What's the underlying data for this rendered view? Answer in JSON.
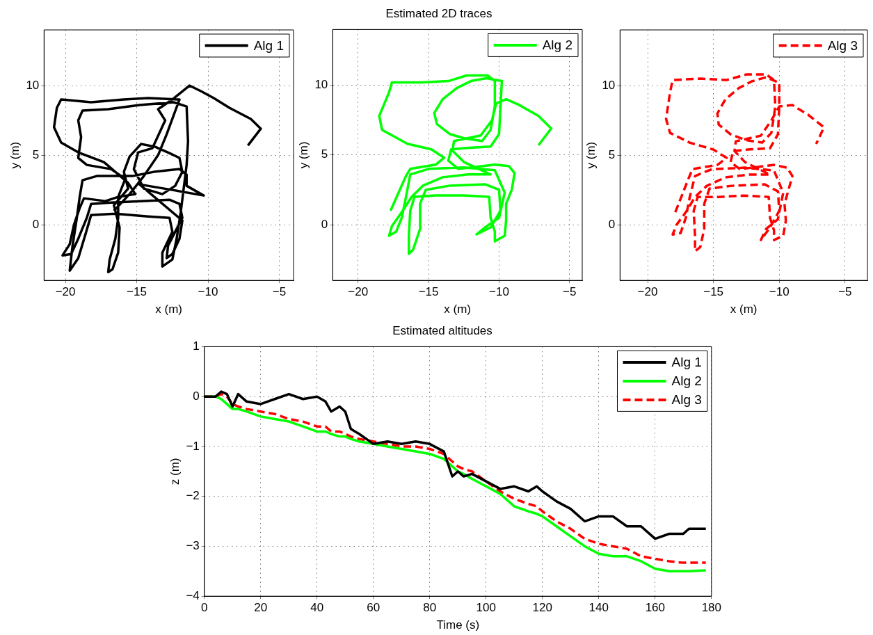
{
  "chart_data": [
    {
      "type": "line",
      "xlabel": "x (m)",
      "ylabel": "y (m)",
      "xlim": [
        -21.5,
        -4
      ],
      "ylim": [
        -4,
        14
      ],
      "xticks": [
        -20,
        -15,
        -10,
        -5
      ],
      "yticks": [
        0,
        5,
        10
      ],
      "grid": true,
      "legend": "top right",
      "marker": "none",
      "series": [
        {
          "name": "Alg 1",
          "color": "#000000",
          "line_style": "solid",
          "x": [
            -16.6,
            -15.5,
            -14.5,
            -13.5,
            -12.9,
            -12.0,
            -14.2,
            -15.9,
            -18.2,
            -20.3,
            -20.6,
            -20.8,
            -20.3,
            -19.1,
            -17.3,
            -16.5,
            -15.6,
            -15.1,
            -16.3,
            -17.2,
            -18.7,
            -19.0,
            -19.4,
            -19.7,
            -20.2,
            -19.6,
            -19.1,
            -18.5,
            -18.2,
            -16.8,
            -14.7,
            -12.7,
            -12.0,
            -11.8,
            -12.3,
            -12.8,
            -12.9,
            -12.5,
            -12.0,
            -11.8,
            -14.8,
            -12.5,
            -10.3,
            -11.5,
            -11.5,
            -12.0,
            -13.8,
            -15.3,
            -17.8,
            -18.8,
            -19.0,
            -19.2,
            -19.5,
            -19.7,
            -19.1,
            -18.6,
            -18.2,
            -16.5,
            -14.2,
            -12.7,
            -12.5,
            -13.2,
            -13.2,
            -12.5,
            -12.2,
            -11.9,
            -11.5,
            -11.4,
            -11.5,
            -12.4,
            -14.8,
            -17.0,
            -18.8,
            -19.1,
            -18.9,
            -19.1,
            -18.5,
            -16.8,
            -15.8,
            -16.3,
            -16.3,
            -16.5,
            -16.9,
            -17.0,
            -16.7,
            -16.3,
            -16.2,
            -16.6,
            -15.6,
            -15.9,
            -15.5,
            -14.7,
            -13.7,
            -12.6,
            -12.0,
            -11.8,
            -12.3,
            -13.2,
            -14.5,
            -15.2,
            -14.9,
            -13.9,
            -13.0,
            -13.5,
            -12.5,
            -11.3,
            -10.5,
            -9.6,
            -8.5,
            -7.0,
            -6.3,
            -7.2
          ],
          "values": [
            1.0,
            2.2,
            3.5,
            5.0,
            6.5,
            9.0,
            9.1,
            9.0,
            8.8,
            9.0,
            8.4,
            7.0,
            5.9,
            5.2,
            4.5,
            3.8,
            3.0,
            2.2,
            2.0,
            1.7,
            1.9,
            1.2,
            0.0,
            -1.4,
            -2.2,
            -2.1,
            -1.0,
            0.5,
            1.5,
            1.6,
            1.7,
            1.8,
            1.5,
            0.5,
            -0.5,
            -1.5,
            -2.4,
            -2.1,
            -1.0,
            0.3,
            2.9,
            2.5,
            2.1,
            2.8,
            3.6,
            4.0,
            3.8,
            3.5,
            3.5,
            3.2,
            2.0,
            0.5,
            -1.5,
            -3.3,
            -2.4,
            -0.7,
            0.7,
            0.8,
            0.6,
            0.5,
            -0.5,
            -2.0,
            -3.0,
            -2.5,
            -1.0,
            1.0,
            4.3,
            6.0,
            8.5,
            8.8,
            8.6,
            8.3,
            8.2,
            7.5,
            6.3,
            4.8,
            4.3,
            4.0,
            3.3,
            2.0,
            0.5,
            -1.0,
            -2.5,
            -3.4,
            -3.2,
            -2.0,
            -0.2,
            1.4,
            2.6,
            3.8,
            4.9,
            5.8,
            5.6,
            5.1,
            4.8,
            3.8,
            2.8,
            2.2,
            2.6,
            4.0,
            5.2,
            5.5,
            7.5,
            8.3,
            9.0,
            10.0,
            9.6,
            9.1,
            8.4,
            7.6,
            6.9,
            5.7
          ]
        }
      ]
    },
    {
      "type": "line",
      "title": "Estimated 2D traces",
      "xlabel": "x (m)",
      "ylabel": "y (m)",
      "xlim": [
        -21.8,
        -4.1
      ],
      "ylim": [
        -4,
        14
      ],
      "xticks": [
        -20,
        -15,
        -10,
        -5
      ],
      "yticks": [
        0,
        5,
        10
      ],
      "grid": true,
      "legend": "top right",
      "marker": "none",
      "series": [
        {
          "name": "Alg 2",
          "color": "#00ff00",
          "line_style": "solid",
          "x": [
            -17.7,
            -16.6,
            -16.3,
            -14.5,
            -13.9,
            -14.8,
            -16.5,
            -18.3,
            -18.5,
            -17.8,
            -17.6,
            -15.5,
            -13.6,
            -12.3,
            -10.8,
            -10.3,
            -10.3,
            -10.6,
            -11.2,
            -12.5,
            -13.5,
            -14.4,
            -14.6,
            -14.0,
            -13.0,
            -12.0,
            -10.9,
            -9.8,
            -9.9,
            -10.0,
            -10.6,
            -12.3,
            -13.4,
            -13.6,
            -12.9,
            -12.0,
            -10.3,
            -9.3,
            -8.9,
            -9.1,
            -9.5,
            -9.5,
            -9.6,
            -10.3,
            -10.3,
            -10.6,
            -10.7,
            -12.5,
            -14.5,
            -16.0,
            -16.3,
            -16.4,
            -16.4,
            -16.1,
            -15.6,
            -15.6,
            -15.2,
            -13.5,
            -11.0,
            -10.0,
            -9.9,
            -10.6,
            -11.6,
            -11.0,
            -10.0,
            -9.6,
            -10.3,
            -12.5,
            -15.0,
            -16.3,
            -16.6,
            -16.9,
            -17.3,
            -17.8,
            -17.6,
            -16.9,
            -16.2,
            -15.4,
            -14.0,
            -12.2,
            -10.6,
            -12.5,
            -13.3,
            -13.2,
            -11.3,
            -10.5,
            -10.2,
            -9.5,
            -8.6,
            -7.2,
            -6.3,
            -7.2
          ],
          "values": [
            1.0,
            3.5,
            4.0,
            4.3,
            4.8,
            5.4,
            5.8,
            6.8,
            7.8,
            9.5,
            10.2,
            10.2,
            10.3,
            10.7,
            10.7,
            10.3,
            8.5,
            6.8,
            6.0,
            6.2,
            6.5,
            7.2,
            8.0,
            9.0,
            9.8,
            10.3,
            10.5,
            10.3,
            8.5,
            6.5,
            5.6,
            5.5,
            5.4,
            4.6,
            4.0,
            4.1,
            4.3,
            4.2,
            3.7,
            2.5,
            1.5,
            0.3,
            -0.8,
            -1.2,
            -0.5,
            0.5,
            2.0,
            2.1,
            2.1,
            2.0,
            1.0,
            -0.8,
            -2.1,
            -1.8,
            -0.3,
            1.5,
            2.5,
            2.8,
            2.9,
            2.5,
            1.0,
            -0.2,
            -0.7,
            -0.2,
            0.5,
            2.3,
            3.9,
            4.1,
            4.0,
            3.6,
            2.0,
            0.5,
            -0.5,
            -0.8,
            -0.1,
            0.9,
            2.0,
            2.8,
            3.4,
            3.6,
            3.6,
            4.5,
            5.3,
            6.0,
            6.4,
            7.5,
            8.7,
            9.0,
            8.6,
            7.8,
            6.9,
            5.7
          ]
        }
      ]
    },
    {
      "type": "line",
      "xlabel": "x (m)",
      "ylabel": "y (m)",
      "xlim": [
        -22.1,
        -3.3
      ],
      "ylim": [
        -4,
        14
      ],
      "xticks": [
        -20,
        -15,
        -10,
        -5
      ],
      "yticks": [
        0,
        5,
        10
      ],
      "grid": true,
      "legend": "top right",
      "marker": "none",
      "series": [
        {
          "name": "Alg 3",
          "color": "#ff0000",
          "line_style": "dashed",
          "x": [
            -17.9,
            -16.9,
            -16.6,
            -14.7,
            -14.0,
            -15.0,
            -16.8,
            -18.3,
            -18.6,
            -18.3,
            -18.1,
            -16.0,
            -14.0,
            -12.5,
            -11.0,
            -10.4,
            -10.3,
            -10.6,
            -11.3,
            -12.6,
            -13.7,
            -14.6,
            -14.7,
            -14.1,
            -13.1,
            -12.1,
            -11.0,
            -10.0,
            -10.0,
            -10.1,
            -10.7,
            -12.4,
            -13.5,
            -13.7,
            -13.0,
            -12.1,
            -10.4,
            -9.4,
            -9.0,
            -9.3,
            -9.6,
            -9.5,
            -9.7,
            -10.4,
            -10.4,
            -10.7,
            -10.8,
            -12.7,
            -14.6,
            -16.2,
            -16.5,
            -16.4,
            -16.4,
            -16.0,
            -15.7,
            -15.7,
            -15.3,
            -13.6,
            -11.1,
            -10.1,
            -10.0,
            -10.7,
            -11.4,
            -11.0,
            -10.1,
            -9.7,
            -10.4,
            -12.6,
            -15.1,
            -16.4,
            -16.8,
            -17.1,
            -17.5,
            -18.1,
            -17.8,
            -17.1,
            -16.4,
            -15.5,
            -14.1,
            -12.3,
            -10.7,
            -12.6,
            -13.4,
            -13.3,
            -11.4,
            -10.6,
            -10.0,
            -9.0,
            -7.8,
            -6.6,
            -7.2
          ],
          "values": [
            0.9,
            3.3,
            4.0,
            4.3,
            4.8,
            5.4,
            5.9,
            6.6,
            7.6,
            9.5,
            10.4,
            10.5,
            10.4,
            10.8,
            10.8,
            10.4,
            8.5,
            6.6,
            5.9,
            6.1,
            6.5,
            7.2,
            8.0,
            9.0,
            9.8,
            10.3,
            10.6,
            10.2,
            8.5,
            6.5,
            5.5,
            5.4,
            5.3,
            4.5,
            4.0,
            4.1,
            4.3,
            4.1,
            3.5,
            2.5,
            1.5,
            0.3,
            -0.8,
            -1.1,
            -0.4,
            0.5,
            2.0,
            2.1,
            2.0,
            2.0,
            1.0,
            -0.8,
            -1.9,
            -1.6,
            -0.3,
            1.5,
            2.6,
            2.8,
            2.9,
            2.4,
            1.0,
            -0.2,
            -1.1,
            -0.3,
            0.4,
            2.3,
            3.9,
            4.1,
            4.0,
            3.5,
            2.0,
            0.5,
            -0.6,
            -0.7,
            0.0,
            0.9,
            2.0,
            2.8,
            3.4,
            3.6,
            3.6,
            4.5,
            5.3,
            6.0,
            6.4,
            7.5,
            8.5,
            8.6,
            7.9,
            7.0,
            5.8
          ]
        }
      ]
    },
    {
      "type": "line",
      "title": "Estimated altitudes",
      "xlabel": "Time (s)",
      "ylabel": "z (m)",
      "xlim": [
        0,
        180
      ],
      "ylim": [
        -4,
        1
      ],
      "xticks": [
        0,
        20,
        40,
        60,
        80,
        100,
        120,
        140,
        160,
        180
      ],
      "yticks": [
        -4,
        -3,
        -2,
        -1,
        0,
        1
      ],
      "grid": true,
      "legend": "top right",
      "marker": "none",
      "x": [
        0,
        4,
        6,
        8,
        10,
        12,
        15,
        20,
        25,
        30,
        35,
        40,
        43,
        45,
        48,
        50,
        52,
        55,
        60,
        65,
        70,
        75,
        80,
        85,
        88,
        90,
        92,
        95,
        100,
        105,
        110,
        115,
        118,
        120,
        125,
        130,
        135,
        140,
        145,
        150,
        155,
        160,
        165,
        170,
        172,
        178
      ],
      "series": [
        {
          "name": "Alg 1",
          "color": "#000000",
          "line_style": "solid",
          "values": [
            0,
            0,
            0.1,
            0.05,
            -0.2,
            0.05,
            -0.1,
            -0.15,
            -0.05,
            0.05,
            -0.05,
            0,
            -0.1,
            -0.3,
            -0.2,
            -0.3,
            -0.65,
            -0.75,
            -0.95,
            -0.9,
            -0.95,
            -0.9,
            -0.95,
            -1.1,
            -1.6,
            -1.5,
            -1.6,
            -1.55,
            -1.7,
            -1.85,
            -1.8,
            -1.9,
            -1.8,
            -1.9,
            -2.1,
            -2.25,
            -2.5,
            -2.4,
            -2.4,
            -2.6,
            -2.6,
            -2.85,
            -2.75,
            -2.75,
            -2.65,
            -2.65
          ]
        },
        {
          "name": "Alg 2",
          "color": "#00ff00",
          "line_style": "solid",
          "values": [
            0,
            0,
            -0.05,
            -0.15,
            -0.25,
            -0.25,
            -0.3,
            -0.4,
            -0.45,
            -0.5,
            -0.6,
            -0.7,
            -0.7,
            -0.75,
            -0.8,
            -0.8,
            -0.85,
            -0.9,
            -0.95,
            -1.0,
            -1.05,
            -1.1,
            -1.15,
            -1.25,
            -1.4,
            -1.5,
            -1.55,
            -1.65,
            -1.8,
            -1.95,
            -2.2,
            -2.3,
            -2.35,
            -2.4,
            -2.6,
            -2.8,
            -3.0,
            -3.15,
            -3.2,
            -3.2,
            -3.3,
            -3.45,
            -3.5,
            -3.5,
            -3.5,
            -3.48
          ]
        },
        {
          "name": "Alg 3",
          "color": "#ff0000",
          "line_style": "dashed",
          "values": [
            0,
            0,
            0.05,
            0,
            -0.15,
            -0.2,
            -0.25,
            -0.3,
            -0.35,
            -0.45,
            -0.5,
            -0.6,
            -0.6,
            -0.7,
            -0.7,
            -0.75,
            -0.8,
            -0.85,
            -0.9,
            -0.95,
            -1.0,
            -1.0,
            -1.05,
            -1.15,
            -1.3,
            -1.4,
            -1.45,
            -1.5,
            -1.7,
            -1.9,
            -2.05,
            -2.15,
            -2.2,
            -2.3,
            -2.5,
            -2.65,
            -2.85,
            -2.95,
            -3.0,
            -3.05,
            -3.2,
            -3.25,
            -3.3,
            -3.33,
            -3.33,
            -3.33
          ]
        }
      ]
    }
  ]
}
